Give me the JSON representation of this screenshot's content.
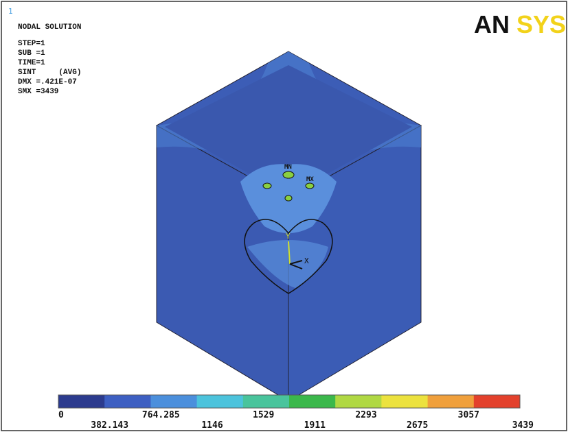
{
  "window_number": "1",
  "info": {
    "title": "NODAL SOLUTION",
    "lines": [
      "STEP=1",
      "SUB =1",
      "TIME=1",
      "SINT     (AVG)",
      "DMX =.421E-07",
      "SMX =3439"
    ]
  },
  "logo": {
    "part1": "AN",
    "part2": "SYS"
  },
  "markers": {
    "min": "MN",
    "max": "MX"
  },
  "axes": {
    "y": "Y",
    "x": "X"
  },
  "legend": {
    "colors": [
      "#2c3b8e",
      "#3d5fc2",
      "#4b8fdc",
      "#4cc3dc",
      "#49c49c",
      "#3bb84b",
      "#b0d843",
      "#ece23e",
      "#f0a03c",
      "#e3412c"
    ],
    "labels": [
      "0",
      "382.143",
      "764.285",
      "1146",
      "1529",
      "1911",
      "2293",
      "2675",
      "3057",
      "3439"
    ]
  }
}
